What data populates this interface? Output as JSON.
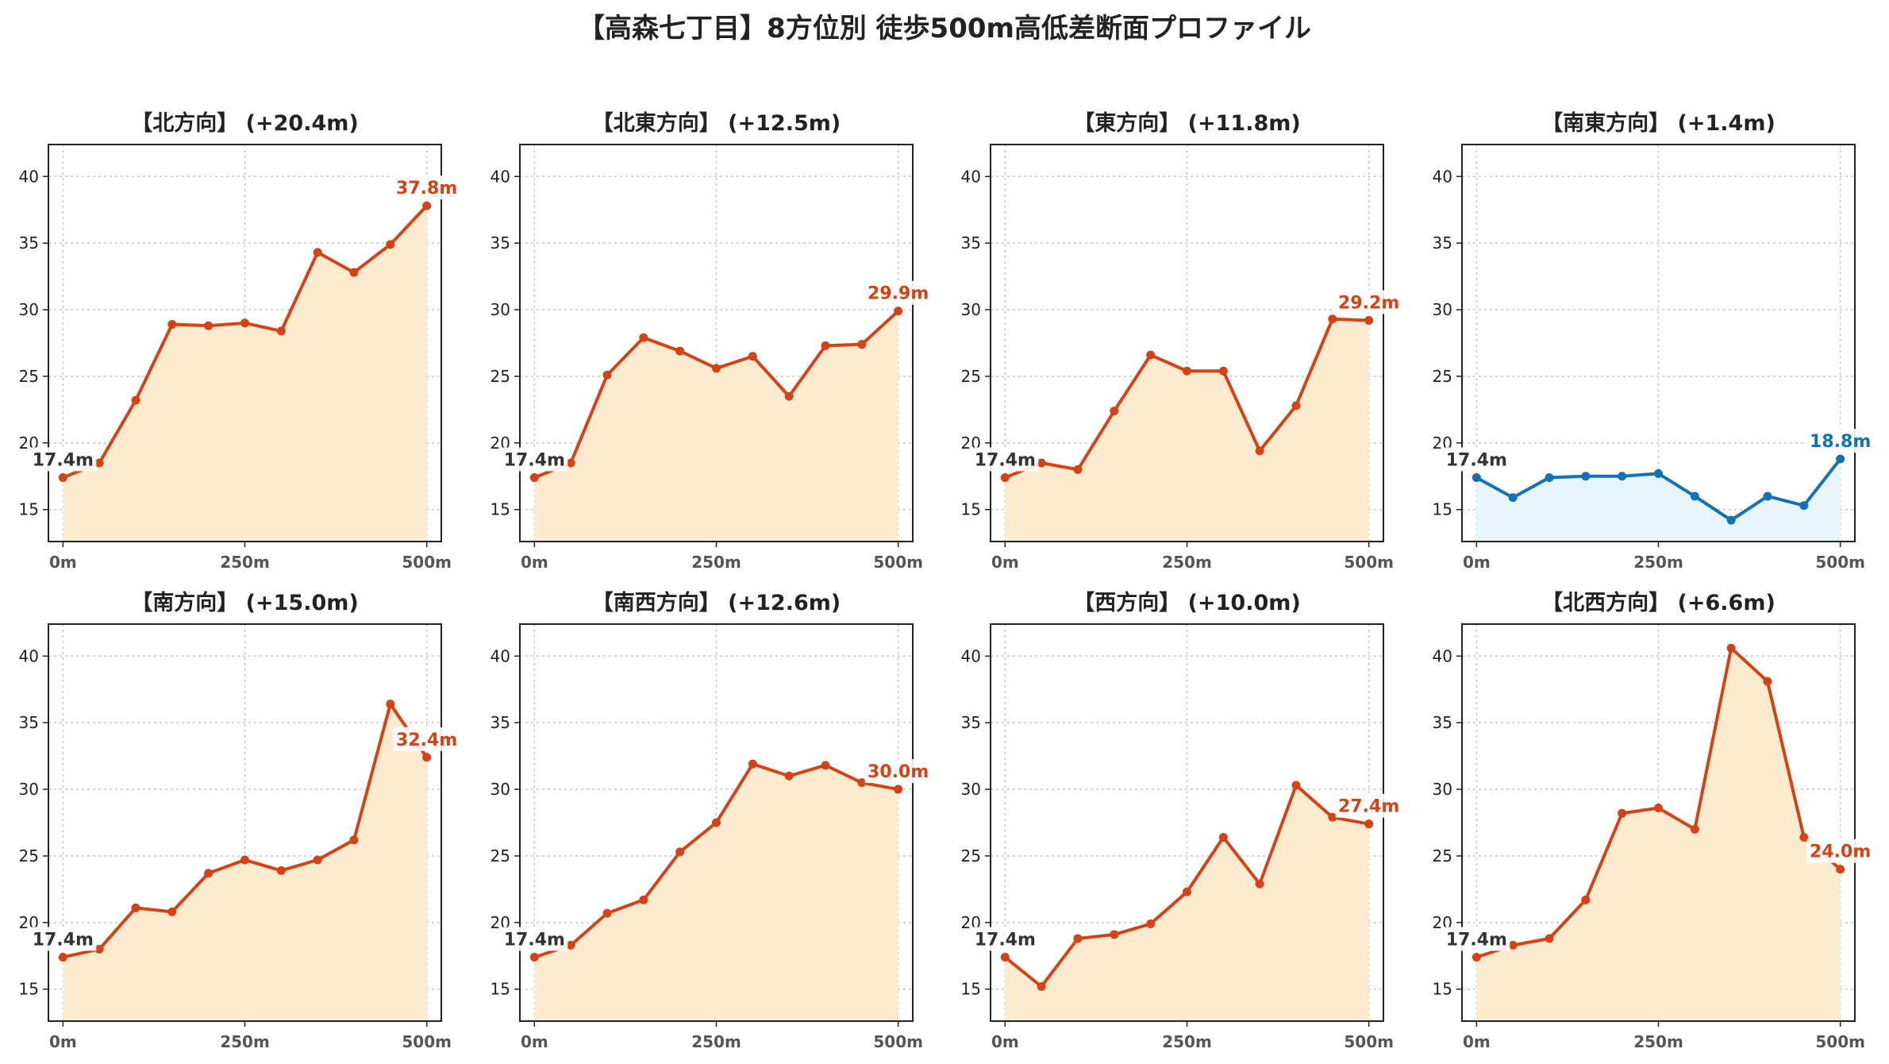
{
  "title": "【高森七丁目】8方位別 徒歩500m高低差断面プロファイル",
  "colors": {
    "up_line": "#d44215",
    "up_fill": "#fdebd0",
    "flat_line": "#1372b5",
    "flat_fill": "#e8f5fb",
    "start_label": "#333333",
    "grid": "#c8c8c8"
  },
  "chart_data": [
    {
      "type": "line",
      "title": "【北方向】 (+20.4m)",
      "style": "up",
      "x": [
        0,
        50,
        100,
        150,
        200,
        250,
        300,
        350,
        400,
        450,
        500
      ],
      "y": [
        17.4,
        18.5,
        23.2,
        28.9,
        28.8,
        29.0,
        28.4,
        34.3,
        32.8,
        34.9,
        37.8
      ],
      "start_label": "17.4m",
      "end_label": "37.8m",
      "xticks": [
        0,
        250,
        500
      ],
      "xtick_labels": [
        "0m",
        "250m",
        "500m"
      ],
      "yticks": [
        15,
        20,
        25,
        30,
        35,
        40
      ],
      "ytick_labels": [
        "15",
        "20",
        "25",
        "30",
        "35",
        "40"
      ],
      "xlim": [
        -20,
        520
      ],
      "ylim": [
        12.6,
        42.4
      ],
      "grid": true,
      "fill": true
    },
    {
      "type": "line",
      "title": "【北東方向】 (+12.5m)",
      "style": "up",
      "x": [
        0,
        50,
        100,
        150,
        200,
        250,
        300,
        350,
        400,
        450,
        500
      ],
      "y": [
        17.4,
        18.5,
        25.1,
        27.9,
        26.9,
        25.6,
        26.5,
        23.5,
        27.3,
        27.4,
        29.9
      ],
      "start_label": "17.4m",
      "end_label": "29.9m",
      "xticks": [
        0,
        250,
        500
      ],
      "xtick_labels": [
        "0m",
        "250m",
        "500m"
      ],
      "yticks": [
        15,
        20,
        25,
        30,
        35,
        40
      ],
      "ytick_labels": [
        "15",
        "20",
        "25",
        "30",
        "35",
        "40"
      ],
      "xlim": [
        -20,
        520
      ],
      "ylim": [
        12.6,
        42.4
      ],
      "grid": true,
      "fill": true
    },
    {
      "type": "line",
      "title": "【東方向】 (+11.8m)",
      "style": "up",
      "x": [
        0,
        50,
        100,
        150,
        200,
        250,
        300,
        350,
        400,
        450,
        500
      ],
      "y": [
        17.4,
        18.5,
        18.0,
        22.4,
        26.6,
        25.4,
        25.4,
        19.4,
        22.8,
        29.3,
        29.2
      ],
      "start_label": "17.4m",
      "end_label": "29.2m",
      "xticks": [
        0,
        250,
        500
      ],
      "xtick_labels": [
        "0m",
        "250m",
        "500m"
      ],
      "yticks": [
        15,
        20,
        25,
        30,
        35,
        40
      ],
      "ytick_labels": [
        "15",
        "20",
        "25",
        "30",
        "35",
        "40"
      ],
      "xlim": [
        -20,
        520
      ],
      "ylim": [
        12.6,
        42.4
      ],
      "grid": true,
      "fill": true
    },
    {
      "type": "line",
      "title": "【南東方向】 (+1.4m)",
      "style": "flat",
      "x": [
        0,
        50,
        100,
        150,
        200,
        250,
        300,
        350,
        400,
        450,
        500
      ],
      "y": [
        17.4,
        15.9,
        17.4,
        17.5,
        17.5,
        17.7,
        16.0,
        14.2,
        16.0,
        15.3,
        18.8
      ],
      "start_label": "17.4m",
      "end_label": "18.8m",
      "xticks": [
        0,
        250,
        500
      ],
      "xtick_labels": [
        "0m",
        "250m",
        "500m"
      ],
      "yticks": [
        15,
        20,
        25,
        30,
        35,
        40
      ],
      "ytick_labels": [
        "15",
        "20",
        "25",
        "30",
        "35",
        "40"
      ],
      "xlim": [
        -20,
        520
      ],
      "ylim": [
        12.6,
        42.4
      ],
      "grid": true,
      "fill": true
    },
    {
      "type": "line",
      "title": "【南方向】 (+15.0m)",
      "style": "up",
      "x": [
        0,
        50,
        100,
        150,
        200,
        250,
        300,
        350,
        400,
        450,
        500
      ],
      "y": [
        17.4,
        18.0,
        21.1,
        20.8,
        23.7,
        24.7,
        23.9,
        24.7,
        26.2,
        36.4,
        32.4
      ],
      "start_label": "17.4m",
      "end_label": "32.4m",
      "xticks": [
        0,
        250,
        500
      ],
      "xtick_labels": [
        "0m",
        "250m",
        "500m"
      ],
      "yticks": [
        15,
        20,
        25,
        30,
        35,
        40
      ],
      "ytick_labels": [
        "15",
        "20",
        "25",
        "30",
        "35",
        "40"
      ],
      "xlim": [
        -20,
        520
      ],
      "ylim": [
        12.6,
        42.4
      ],
      "grid": true,
      "fill": true
    },
    {
      "type": "line",
      "title": "【南西方向】 (+12.6m)",
      "style": "up",
      "x": [
        0,
        50,
        100,
        150,
        200,
        250,
        300,
        350,
        400,
        450,
        500
      ],
      "y": [
        17.4,
        18.3,
        20.7,
        21.7,
        25.3,
        27.5,
        31.9,
        31.0,
        31.8,
        30.5,
        30.0
      ],
      "start_label": "17.4m",
      "end_label": "30.0m",
      "xticks": [
        0,
        250,
        500
      ],
      "xtick_labels": [
        "0m",
        "250m",
        "500m"
      ],
      "yticks": [
        15,
        20,
        25,
        30,
        35,
        40
      ],
      "ytick_labels": [
        "15",
        "20",
        "25",
        "30",
        "35",
        "40"
      ],
      "xlim": [
        -20,
        520
      ],
      "ylim": [
        12.6,
        42.4
      ],
      "grid": true,
      "fill": true
    },
    {
      "type": "line",
      "title": "【西方向】 (+10.0m)",
      "style": "up",
      "x": [
        0,
        50,
        100,
        150,
        200,
        250,
        300,
        350,
        400,
        450,
        500
      ],
      "y": [
        17.4,
        15.2,
        18.8,
        19.1,
        19.9,
        22.3,
        26.4,
        22.9,
        30.3,
        27.9,
        27.4
      ],
      "start_label": "17.4m",
      "end_label": "27.4m",
      "xticks": [
        0,
        250,
        500
      ],
      "xtick_labels": [
        "0m",
        "250m",
        "500m"
      ],
      "yticks": [
        15,
        20,
        25,
        30,
        35,
        40
      ],
      "ytick_labels": [
        "15",
        "20",
        "25",
        "30",
        "35",
        "40"
      ],
      "xlim": [
        -20,
        520
      ],
      "ylim": [
        12.6,
        42.4
      ],
      "grid": true,
      "fill": true
    },
    {
      "type": "line",
      "title": "【北西方向】 (+6.6m)",
      "style": "up",
      "x": [
        0,
        50,
        100,
        150,
        200,
        250,
        300,
        350,
        400,
        450,
        500
      ],
      "y": [
        17.4,
        18.3,
        18.8,
        21.7,
        28.2,
        28.6,
        27.0,
        40.6,
        38.1,
        26.4,
        24.0
      ],
      "start_label": "17.4m",
      "end_label": "24.0m",
      "xticks": [
        0,
        250,
        500
      ],
      "xtick_labels": [
        "0m",
        "250m",
        "500m"
      ],
      "yticks": [
        15,
        20,
        25,
        30,
        35,
        40
      ],
      "ytick_labels": [
        "15",
        "20",
        "25",
        "30",
        "35",
        "40"
      ],
      "xlim": [
        -20,
        520
      ],
      "ylim": [
        12.6,
        42.4
      ],
      "grid": true,
      "fill": true
    }
  ]
}
